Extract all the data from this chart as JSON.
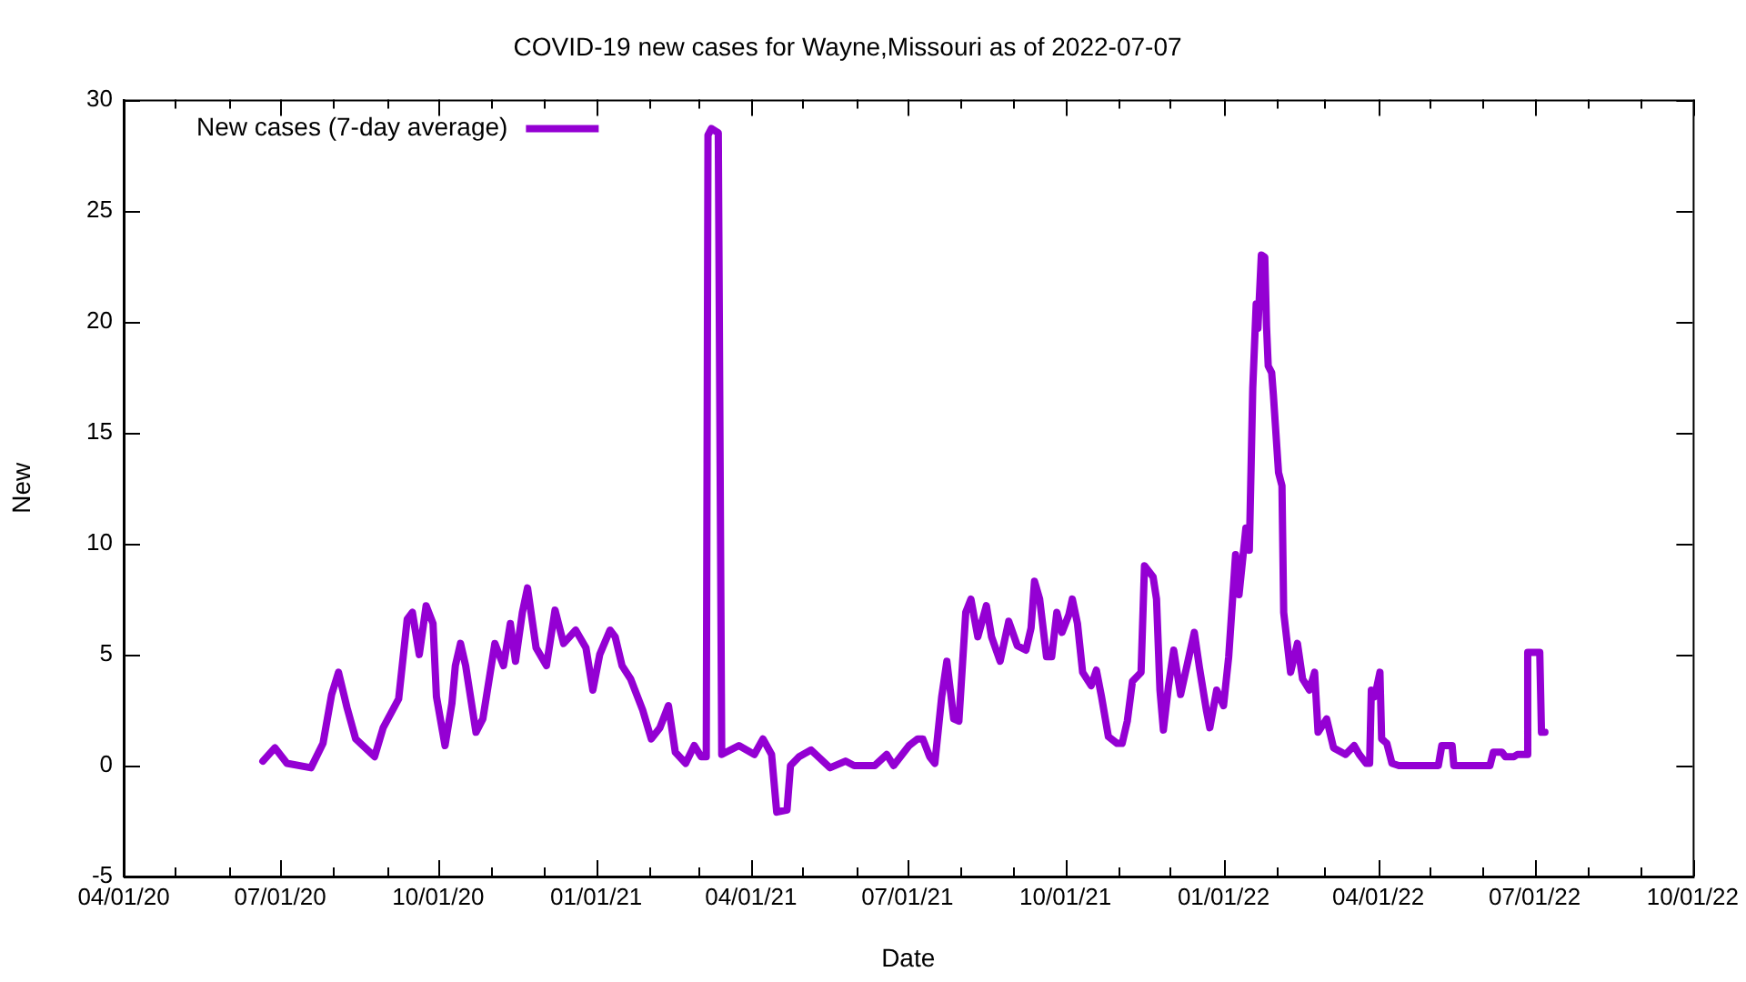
{
  "chart_data": {
    "type": "line",
    "title": "COVID-19 new cases for Wayne,Missouri as of 2022-07-07",
    "xlabel": "Date",
    "ylabel": "New",
    "legend": "top left",
    "grid": false,
    "marker": "none",
    "line_style": "solid",
    "xlim": [
      "2020-04-01",
      "2022-10-01"
    ],
    "xticks": [
      {
        "value": "2020-04-01",
        "label": "04/01/20"
      },
      {
        "value": "2020-05-01",
        "label": null
      },
      {
        "value": "2020-06-01",
        "label": null
      },
      {
        "value": "2020-07-01",
        "label": "07/01/20"
      },
      {
        "value": "2020-08-01",
        "label": null
      },
      {
        "value": "2020-09-01",
        "label": null
      },
      {
        "value": "2020-10-01",
        "label": "10/01/20"
      },
      {
        "value": "2020-11-01",
        "label": null
      },
      {
        "value": "2020-12-01",
        "label": null
      },
      {
        "value": "2021-01-01",
        "label": "01/01/21"
      },
      {
        "value": "2021-02-01",
        "label": null
      },
      {
        "value": "2021-03-01",
        "label": null
      },
      {
        "value": "2021-04-01",
        "label": "04/01/21"
      },
      {
        "value": "2021-05-01",
        "label": null
      },
      {
        "value": "2021-06-01",
        "label": null
      },
      {
        "value": "2021-07-01",
        "label": "07/01/21"
      },
      {
        "value": "2021-08-01",
        "label": null
      },
      {
        "value": "2021-09-01",
        "label": null
      },
      {
        "value": "2021-10-01",
        "label": "10/01/21"
      },
      {
        "value": "2021-11-01",
        "label": null
      },
      {
        "value": "2021-12-01",
        "label": null
      },
      {
        "value": "2022-01-01",
        "label": "01/01/22"
      },
      {
        "value": "2022-02-01",
        "label": null
      },
      {
        "value": "2022-03-01",
        "label": null
      },
      {
        "value": "2022-04-01",
        "label": "04/01/22"
      },
      {
        "value": "2022-05-01",
        "label": null
      },
      {
        "value": "2022-06-01",
        "label": null
      },
      {
        "value": "2022-07-01",
        "label": "07/01/22"
      },
      {
        "value": "2022-08-01",
        "label": null
      },
      {
        "value": "2022-09-01",
        "label": null
      },
      {
        "value": "2022-10-01",
        "label": "10/01/22"
      }
    ],
    "ylim": [
      -5,
      30
    ],
    "yticks": [
      -5,
      0,
      5,
      10,
      15,
      20,
      25,
      30
    ],
    "x": [
      "2020-06-21",
      "2020-06-28",
      "2020-07-05",
      "2020-07-19",
      "2020-07-26",
      "2020-07-31",
      "2020-08-04",
      "2020-08-09",
      "2020-08-14",
      "2020-08-25",
      "2020-08-30",
      "2020-09-08",
      "2020-09-13",
      "2020-09-16",
      "2020-09-20",
      "2020-09-24",
      "2020-09-28",
      "2020-09-30",
      "2020-10-05",
      "2020-10-09",
      "2020-10-11",
      "2020-10-14",
      "2020-10-17",
      "2020-10-23",
      "2020-10-27",
      "2020-11-03",
      "2020-11-08",
      "2020-11-12",
      "2020-11-15",
      "2020-11-19",
      "2020-11-22",
      "2020-11-27",
      "2020-12-03",
      "2020-12-08",
      "2020-12-13",
      "2020-12-20",
      "2020-12-26",
      "2020-12-30",
      "2021-01-03",
      "2021-01-09",
      "2021-01-12",
      "2021-01-16",
      "2021-01-21",
      "2021-01-28",
      "2021-02-02",
      "2021-02-07",
      "2021-02-12",
      "2021-02-16",
      "2021-02-22",
      "2021-02-27",
      "2021-03-03",
      "2021-03-06",
      "2021-03-07",
      "2021-03-09",
      "2021-03-13",
      "2021-03-15",
      "2021-03-25",
      "2021-04-03",
      "2021-04-08",
      "2021-04-13",
      "2021-04-16",
      "2021-04-22",
      "2021-04-24",
      "2021-04-29",
      "2021-05-06",
      "2021-05-17",
      "2021-05-26",
      "2021-05-31",
      "2021-06-12",
      "2021-06-19",
      "2021-06-23",
      "2021-07-02",
      "2021-07-07",
      "2021-07-10",
      "2021-07-14",
      "2021-07-17",
      "2021-07-21",
      "2021-07-24",
      "2021-07-28",
      "2021-07-31",
      "2021-08-04",
      "2021-08-07",
      "2021-08-11",
      "2021-08-16",
      "2021-08-19",
      "2021-08-24",
      "2021-08-29",
      "2021-09-03",
      "2021-09-08",
      "2021-09-11",
      "2021-09-13",
      "2021-09-16",
      "2021-09-20",
      "2021-09-23",
      "2021-09-26",
      "2021-09-29",
      "2021-10-03",
      "2021-10-05",
      "2021-10-08",
      "2021-10-11",
      "2021-10-16",
      "2021-10-19",
      "2021-10-22",
      "2021-10-26",
      "2021-10-31",
      "2021-11-03",
      "2021-11-06",
      "2021-11-09",
      "2021-11-14",
      "2021-11-16",
      "2021-11-21",
      "2021-11-23",
      "2021-11-25",
      "2021-11-27",
      "2021-11-30",
      "2021-12-03",
      "2021-12-07",
      "2021-12-11",
      "2021-12-15",
      "2021-12-18",
      "2021-12-22",
      "2021-12-24",
      "2021-12-28",
      "2022-01-01",
      "2022-01-04",
      "2022-01-08",
      "2022-01-10",
      "2022-01-14",
      "2022-01-16",
      "2022-01-18",
      "2022-01-20",
      "2022-01-21",
      "2022-01-23",
      "2022-01-25",
      "2022-01-26",
      "2022-01-27",
      "2022-01-29",
      "2022-01-30",
      "2022-02-02",
      "2022-02-04",
      "2022-02-05",
      "2022-02-09",
      "2022-02-13",
      "2022-02-16",
      "2022-02-20",
      "2022-02-23",
      "2022-02-25",
      "2022-03-02",
      "2022-03-06",
      "2022-03-13",
      "2022-03-18",
      "2022-03-21",
      "2022-03-25",
      "2022-03-27",
      "2022-03-28",
      "2022-03-30",
      "2022-04-02",
      "2022-04-03",
      "2022-04-06",
      "2022-04-09",
      "2022-04-13",
      "2022-05-06",
      "2022-05-08",
      "2022-05-14",
      "2022-05-15",
      "2022-06-05",
      "2022-06-07",
      "2022-06-12",
      "2022-06-14",
      "2022-06-19",
      "2022-06-21",
      "2022-06-26",
      "2022-06-27",
      "2022-07-04",
      "2022-07-05",
      "2022-07-07"
    ],
    "series": [
      {
        "name": "New cases (7-day average)",
        "color": "#9400d3",
        "values": [
          0.2,
          0.8,
          0.1,
          -0.1,
          1.0,
          3.2,
          4.2,
          2.6,
          1.2,
          0.4,
          1.7,
          3.0,
          6.6,
          6.9,
          5.0,
          7.2,
          6.4,
          3.1,
          0.9,
          2.8,
          4.5,
          5.5,
          4.5,
          1.5,
          2.1,
          5.5,
          4.5,
          6.4,
          4.7,
          6.9,
          8.0,
          5.3,
          4.5,
          7.0,
          5.5,
          6.1,
          5.3,
          3.4,
          5.0,
          6.1,
          5.8,
          4.5,
          3.9,
          2.5,
          1.2,
          1.7,
          2.7,
          0.6,
          0.1,
          0.9,
          0.4,
          0.4,
          28.4,
          28.7,
          28.5,
          0.5,
          0.9,
          0.5,
          1.2,
          0.5,
          -2.1,
          -2.0,
          0.0,
          0.4,
          0.7,
          -0.1,
          0.2,
          0.0,
          0.0,
          0.5,
          0.0,
          0.9,
          1.2,
          1.2,
          0.4,
          0.1,
          3.1,
          4.7,
          2.1,
          2.0,
          6.9,
          7.5,
          5.8,
          7.2,
          5.8,
          4.7,
          6.5,
          5.4,
          5.2,
          6.2,
          8.3,
          7.5,
          4.9,
          4.9,
          6.9,
          6.0,
          6.8,
          7.5,
          6.4,
          4.2,
          3.6,
          4.3,
          3.1,
          1.3,
          1.0,
          1.0,
          2.0,
          3.8,
          4.2,
          9.0,
          8.5,
          7.5,
          3.4,
          1.6,
          3.6,
          5.2,
          3.2,
          4.6,
          6.0,
          4.4,
          2.5,
          1.7,
          3.4,
          2.7,
          4.9,
          9.5,
          7.7,
          10.7,
          9.7,
          17.0,
          20.8,
          19.7,
          23.0,
          22.9,
          19.8,
          18.0,
          17.7,
          16.7,
          13.2,
          12.6,
          6.9,
          4.2,
          5.5,
          3.9,
          3.4,
          4.2,
          1.5,
          2.1,
          0.8,
          0.5,
          0.9,
          0.5,
          0.1,
          0.1,
          3.4,
          3.1,
          4.2,
          1.2,
          1.0,
          0.1,
          0,
          0,
          0.9,
          0.9,
          0,
          0,
          0.6,
          0.6,
          0.4,
          0.4,
          0.5,
          0.5,
          5.1,
          5.1,
          1.5,
          1.5
        ]
      }
    ]
  }
}
